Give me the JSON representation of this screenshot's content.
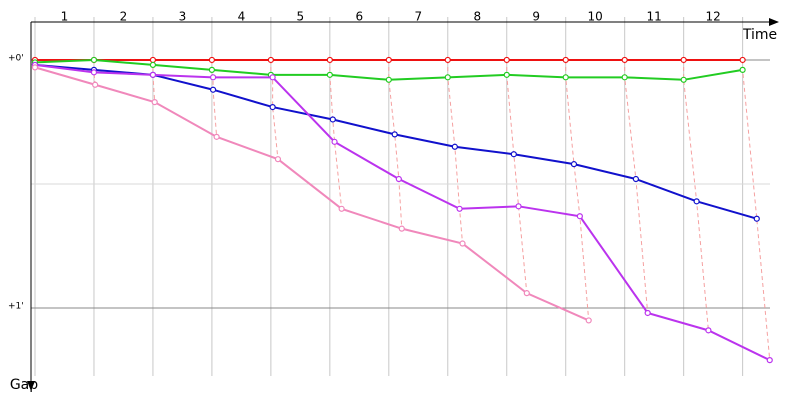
{
  "chart_data": {
    "type": "line",
    "x_label": "Time",
    "y_label": "Gap",
    "categories": [
      "1",
      "2",
      "3",
      "4",
      "5",
      "6",
      "7",
      "8",
      "9",
      "10",
      "11",
      "12"
    ],
    "xlim": [
      0,
      12.6
    ],
    "ylim": [
      -0.153,
      1.274
    ],
    "yticks": [
      {
        "value": 0,
        "label": "+0'"
      },
      {
        "value": 1,
        "label": "+1'"
      }
    ],
    "minor_yticks": [
      0.5
    ],
    "grid": true,
    "series": [
      {
        "color": "#ee1111",
        "x": [
          0,
          1,
          2,
          3,
          4,
          5,
          6,
          7,
          8,
          9,
          10,
          11,
          12
        ],
        "values": [
          0,
          0,
          0,
          0,
          0,
          0,
          0,
          0,
          0,
          0,
          0,
          0,
          0
        ]
      },
      {
        "color": "#22cc22",
        "x": [
          0,
          1,
          2,
          3,
          4,
          5,
          6,
          7,
          8,
          9,
          10,
          11,
          12
        ],
        "values": [
          0.01,
          0,
          0.02,
          0.04,
          0.06,
          0.06,
          0.08,
          0.07,
          0.06,
          0.07,
          0.07,
          0.08,
          0.04
        ]
      },
      {
        "color": "#1111cc",
        "x": [
          0,
          1,
          2,
          3.02,
          4.03,
          5.05,
          6.1,
          7.12,
          8.12,
          9.14,
          10.19,
          11.22,
          12.24
        ],
        "values": [
          0.02,
          0.04,
          0.06,
          0.12,
          0.19,
          0.24,
          0.3,
          0.35,
          0.38,
          0.42,
          0.48,
          0.57,
          0.64
        ]
      },
      {
        "color": "#bb33ee",
        "x": [
          0,
          1,
          2,
          3.02,
          4.03,
          5.08,
          6.17,
          7.2,
          8.2,
          9.24,
          10.39,
          11.42,
          12.46
        ],
        "values": [
          0.02,
          0.05,
          0.06,
          0.07,
          0.07,
          0.33,
          0.48,
          0.6,
          0.59,
          0.63,
          1.02,
          1.09,
          1.21
        ]
      },
      {
        "color": "#f088bb",
        "x": [
          0,
          1.02,
          2.03,
          3.08,
          4.12,
          5.2,
          6.22,
          7.25,
          8.34,
          9.39
        ],
        "values": [
          0.03,
          0.1,
          0.17,
          0.31,
          0.4,
          0.6,
          0.68,
          0.74,
          0.94,
          1.05
        ]
      }
    ]
  }
}
